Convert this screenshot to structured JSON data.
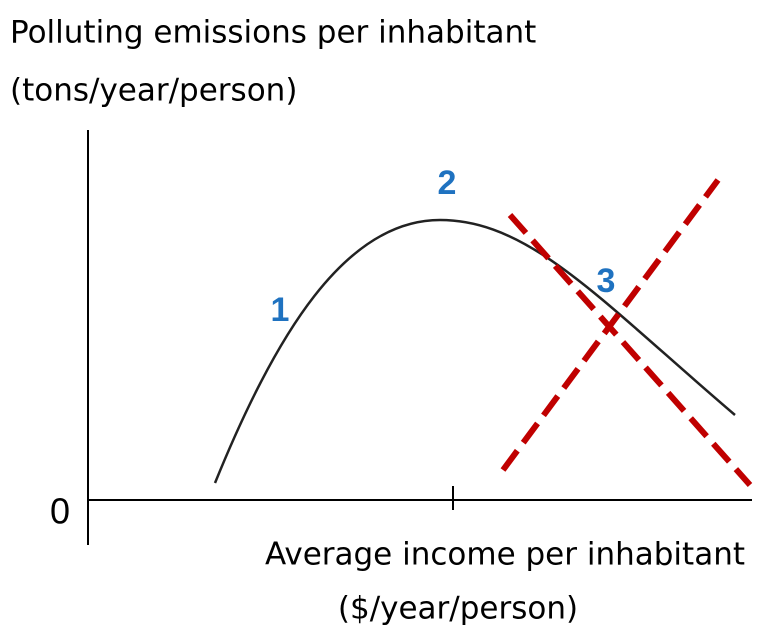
{
  "y_axis_label": [
    "Polluting emissions per inhabitant",
    "(tons/year/person)"
  ],
  "x_axis_label": [
    "Average income per inhabitant",
    "($/year/person)"
  ],
  "origin_label": "0",
  "stage_labels": [
    "1",
    "2",
    "3"
  ]
}
